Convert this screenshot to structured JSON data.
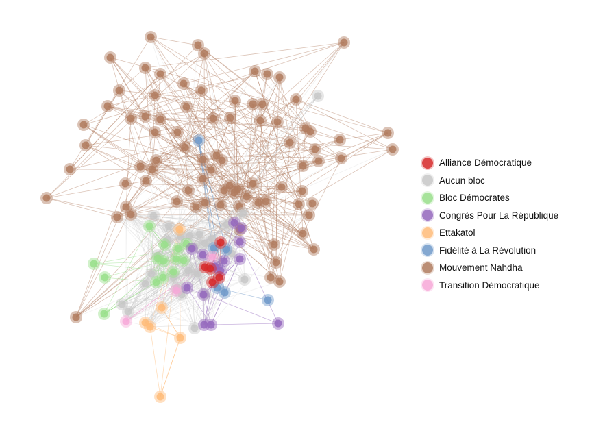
{
  "legend": {
    "items": [
      {
        "label": "Alliance Démocratique",
        "color": "#d62728"
      },
      {
        "label": "Aucun bloc",
        "color": "#c7c7c7"
      },
      {
        "label": "Bloc Démocrates",
        "color": "#98df8a"
      },
      {
        "label": "Congrès Pour La République",
        "color": "#9467bd"
      },
      {
        "label": "Ettakatol",
        "color": "#ffbb78"
      },
      {
        "label": "Fidélité à La Révolution",
        "color": "#6f99c9"
      },
      {
        "label": "Mouvement Nahdha",
        "color": "#b07b5e"
      },
      {
        "label": "Transition Démocratique",
        "color": "#f7a8d8"
      }
    ]
  }
}
